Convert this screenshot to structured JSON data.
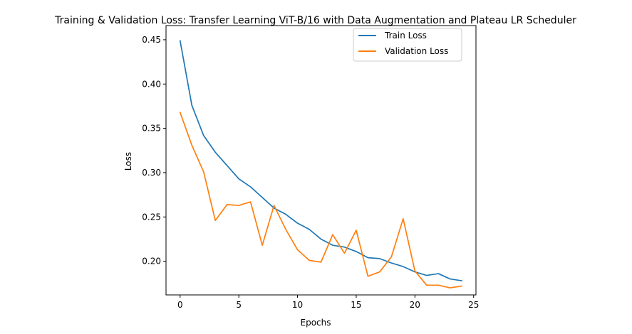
{
  "chart_data": {
    "type": "line",
    "title": "Training & Validation Loss: Transfer Learning ViT-B/16 with Data Augmentation and Plateau LR Scheduler",
    "xlabel": "Epochs",
    "ylabel": "Loss",
    "xlim": [
      -1.2,
      25.2
    ],
    "ylim": [
      0.162,
      0.466
    ],
    "x_ticks": [
      0,
      5,
      10,
      15,
      20,
      25
    ],
    "x_tick_labels": [
      "0",
      "5",
      "10",
      "15",
      "20",
      "25"
    ],
    "y_ticks": [
      0.2,
      0.25,
      0.3,
      0.35,
      0.4,
      0.45
    ],
    "y_tick_labels": [
      "0.20",
      "0.25",
      "0.30",
      "0.35",
      "0.40",
      "0.45"
    ],
    "grid": false,
    "legend_position": "top-right",
    "x": [
      0,
      1,
      2,
      3,
      4,
      5,
      6,
      7,
      8,
      9,
      10,
      11,
      12,
      13,
      14,
      15,
      16,
      17,
      18,
      19,
      20,
      21,
      22,
      23,
      24
    ],
    "series": [
      {
        "name": "Train Loss",
        "color": "#1f77b4",
        "values": [
          0.449,
          0.376,
          0.342,
          0.323,
          0.308,
          0.293,
          0.284,
          0.272,
          0.26,
          0.253,
          0.243,
          0.236,
          0.225,
          0.218,
          0.216,
          0.211,
          0.204,
          0.203,
          0.198,
          0.194,
          0.188,
          0.184,
          0.186,
          0.18,
          0.178
        ]
      },
      {
        "name": "Validation Loss",
        "color": "#ff7f0e",
        "values": [
          0.368,
          0.331,
          0.301,
          0.246,
          0.264,
          0.263,
          0.267,
          0.218,
          0.263,
          0.236,
          0.213,
          0.201,
          0.199,
          0.23,
          0.209,
          0.235,
          0.183,
          0.188,
          0.205,
          0.248,
          0.189,
          0.173,
          0.173,
          0.17,
          0.172
        ]
      }
    ]
  }
}
